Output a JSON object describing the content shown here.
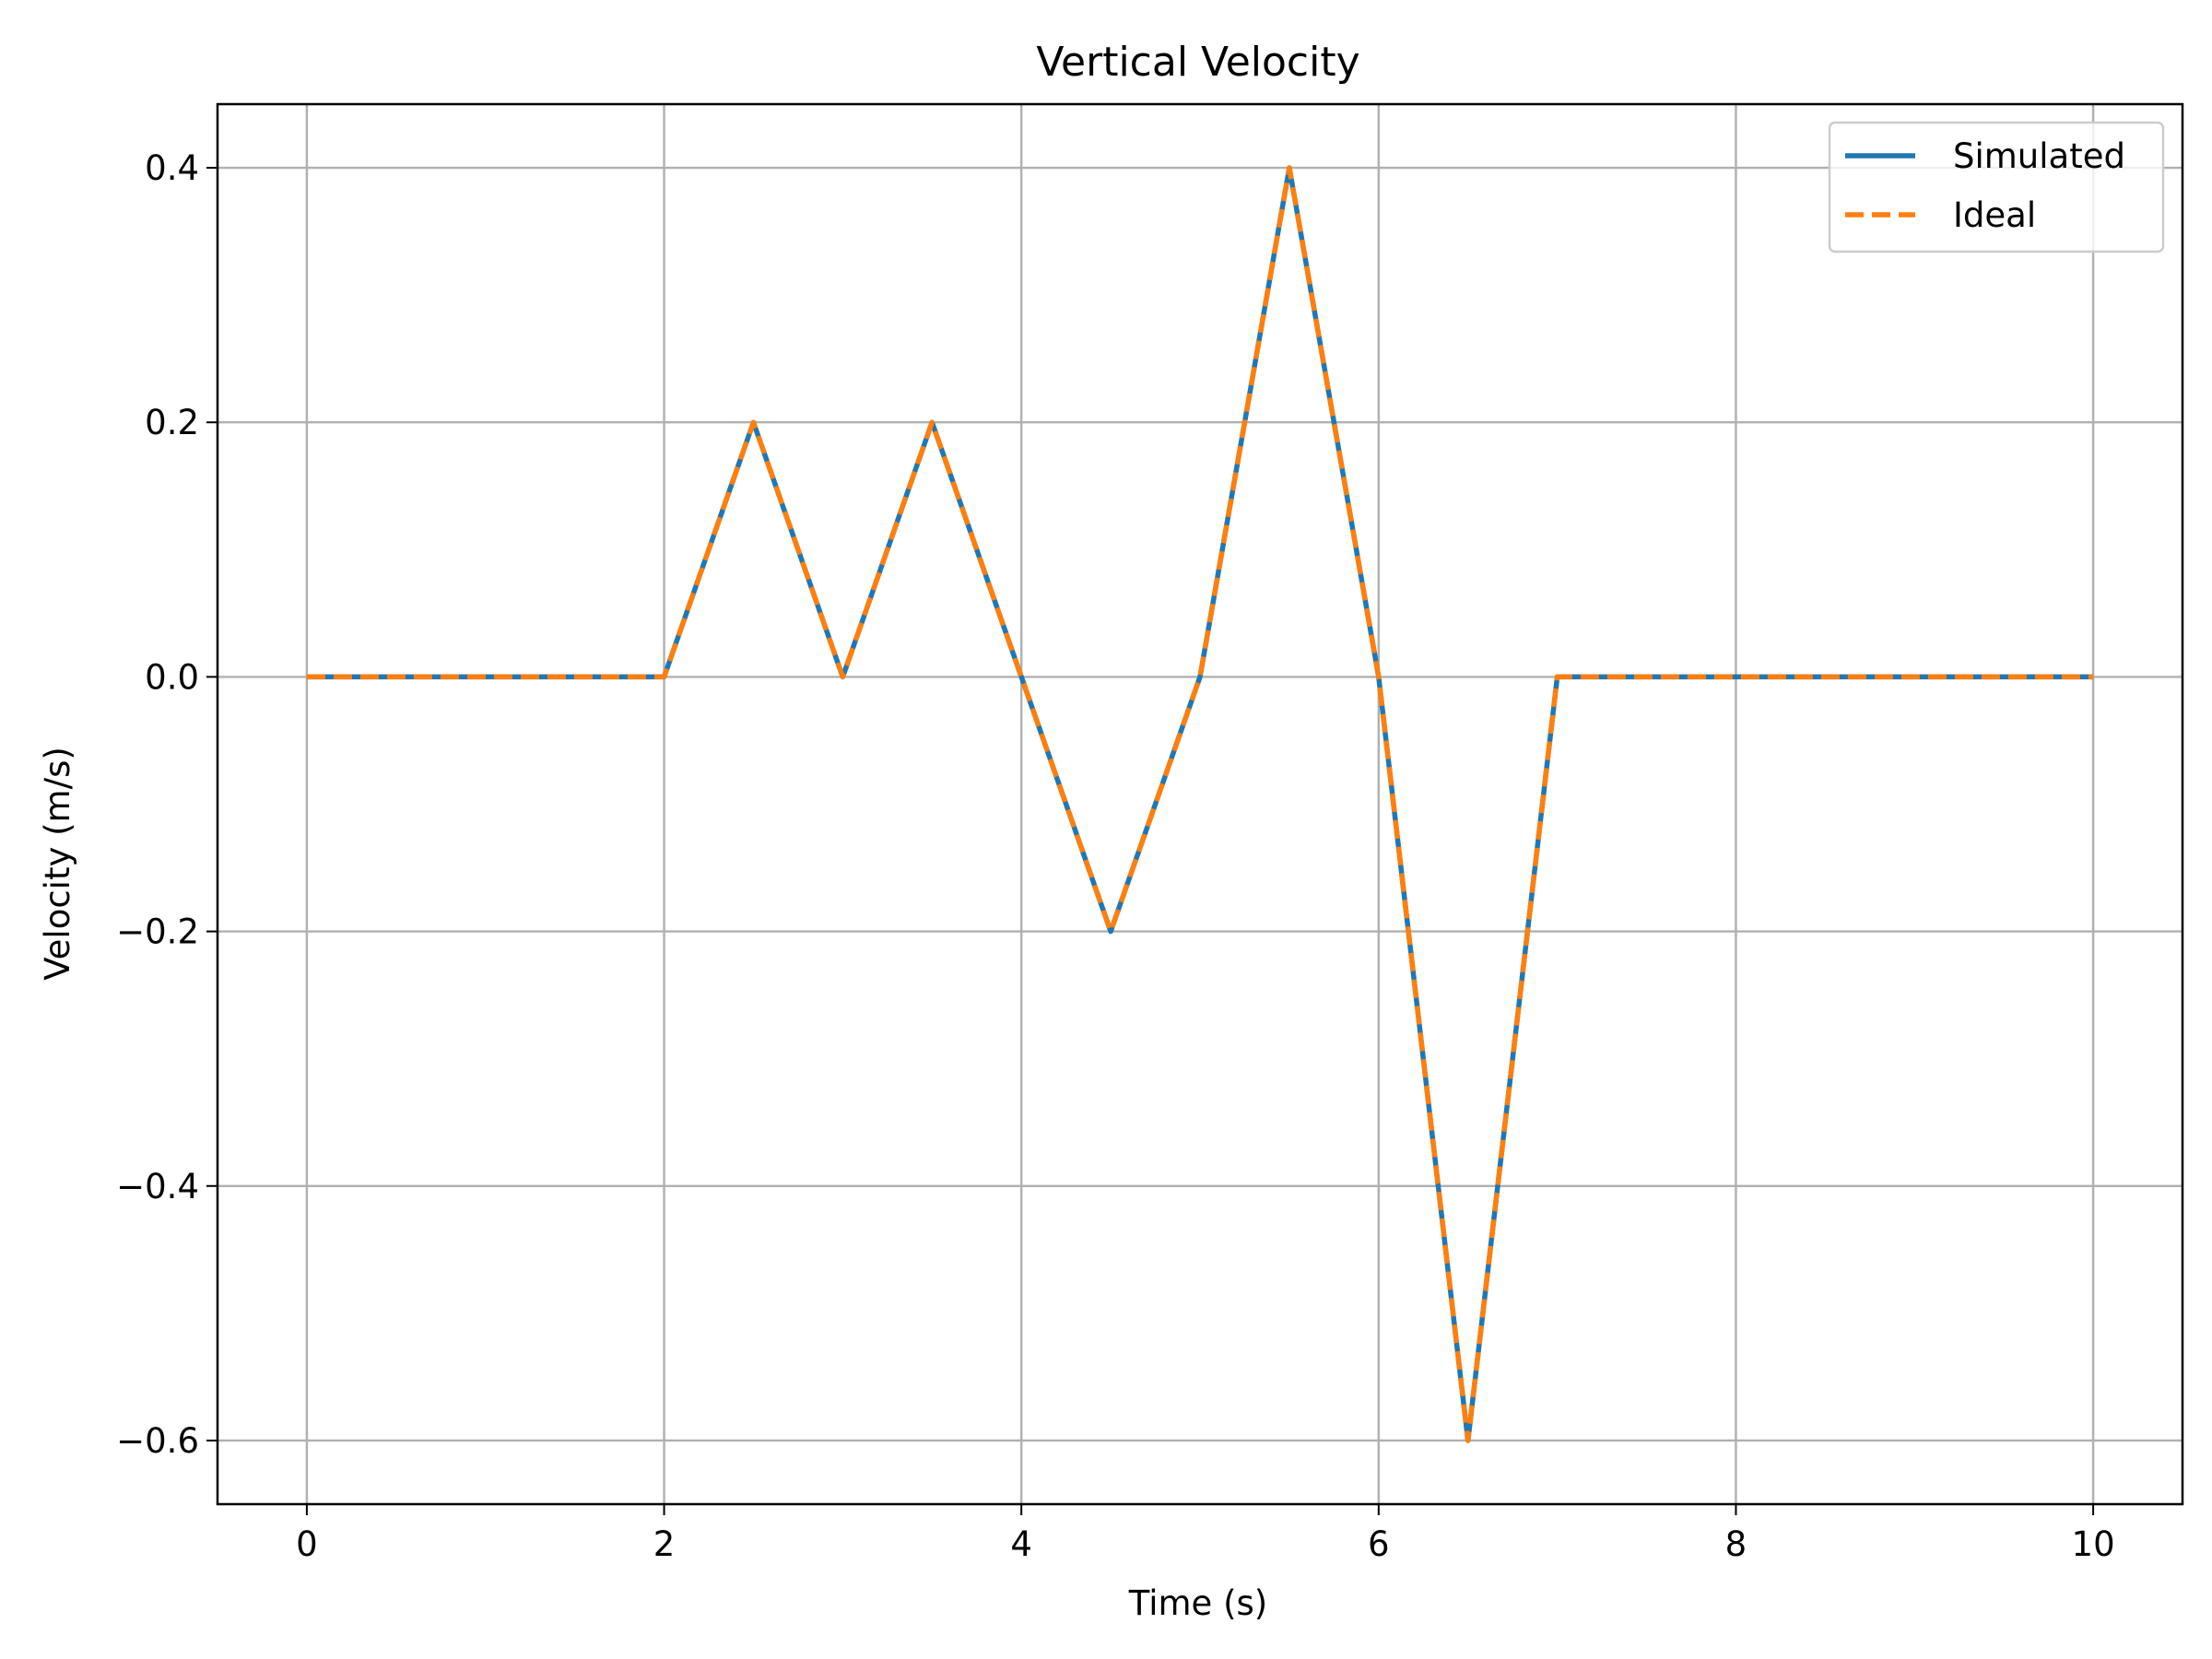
{
  "chart_data": {
    "type": "line",
    "title": "Vertical Velocity",
    "xlabel": "Time (s)",
    "ylabel": "Velocity (m/s)",
    "xlim": [
      -0.5,
      10.5
    ],
    "ylim": [
      -0.65,
      0.45
    ],
    "xticks": [
      0,
      2,
      4,
      6,
      8,
      10
    ],
    "xtick_labels": [
      "0",
      "2",
      "4",
      "6",
      "8",
      "10"
    ],
    "yticks": [
      -0.6,
      -0.4,
      -0.2,
      0.0,
      0.2,
      0.4
    ],
    "ytick_labels": [
      "−0.6",
      "−0.4",
      "−0.2",
      "0.0",
      "0.2",
      "0.4"
    ],
    "grid": true,
    "legend_position": "top-right",
    "x": [
      0,
      0.5,
      1,
      1.5,
      2,
      2.5,
      3,
      3.5,
      4,
      4.5,
      5,
      5.5,
      6,
      6.5,
      7,
      7.5,
      8,
      8.5,
      9,
      9.5,
      10
    ],
    "series": [
      {
        "name": "Simulated",
        "color": "#1f77b4",
        "style": "solid",
        "values": [
          0,
          0,
          0,
          0,
          0,
          0.2,
          0,
          0.2,
          0,
          -0.2,
          0,
          0.4,
          0,
          -0.6,
          0,
          0,
          0,
          0,
          0,
          0,
          0
        ]
      },
      {
        "name": "Ideal",
        "color": "#ff7f0e",
        "style": "dashed",
        "values": [
          0,
          0,
          0,
          0,
          0,
          0.2,
          0,
          0.2,
          0,
          -0.2,
          0,
          0.4,
          0,
          -0.6,
          0,
          0,
          0,
          0,
          0,
          0,
          0
        ]
      }
    ]
  }
}
